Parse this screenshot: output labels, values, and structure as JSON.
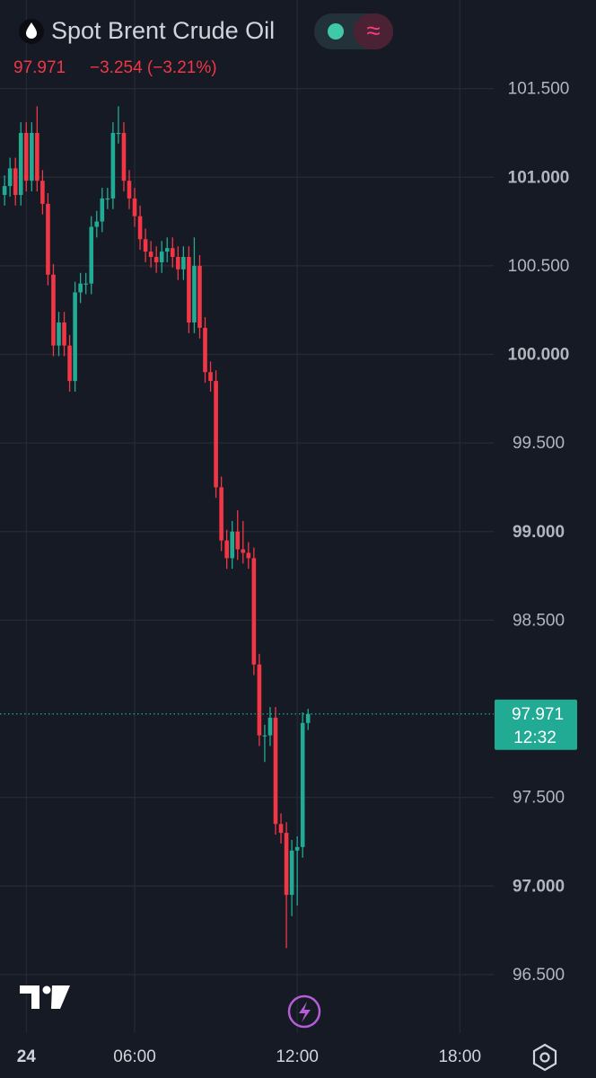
{
  "chart_data": {
    "type": "candlestick",
    "title": "Spot Brent Crude Oil",
    "last_price": 97.971,
    "last_price_label": "97.971",
    "price_change": "−3.254 (−3.21%)",
    "countdown": "12:32",
    "up_color": "#22ab94",
    "down_color": "#f23645",
    "grid": true,
    "x": [
      1.2,
      1.4,
      1.6,
      1.8,
      2.0,
      2.2,
      2.4,
      2.6,
      2.8,
      3.0,
      3.2,
      3.4,
      3.6,
      3.8,
      4.0,
      4.2,
      4.4,
      4.6,
      4.8,
      5.0,
      5.2,
      5.4,
      5.6,
      5.8,
      6.0,
      6.2,
      6.4,
      6.6,
      6.8,
      7.0,
      7.2,
      7.4,
      7.6,
      7.8,
      8.0,
      8.2,
      8.4,
      8.6,
      8.8,
      9.0,
      9.2,
      9.4,
      9.6,
      9.8,
      10.0,
      10.2,
      10.4,
      10.6,
      10.8,
      11.0,
      11.2,
      11.4,
      11.6,
      11.8,
      12.0,
      12.2,
      12.4
    ],
    "open": [
      100.9,
      100.95,
      101.05,
      100.9,
      101.25,
      100.98,
      101.25,
      100.98,
      100.85,
      100.45,
      100.05,
      100.18,
      100.05,
      99.85,
      100.35,
      100.4,
      100.4,
      100.72,
      100.75,
      100.88,
      100.88,
      101.25,
      101.25,
      100.98,
      100.88,
      100.78,
      100.65,
      100.58,
      100.55,
      100.52,
      100.58,
      100.6,
      100.55,
      100.48,
      100.55,
      100.18,
      100.5,
      100.15,
      99.9,
      99.85,
      99.25,
      98.95,
      98.85,
      99.0,
      98.9,
      98.88,
      98.85,
      98.25,
      97.85,
      97.85,
      97.95,
      97.35,
      97.3,
      96.95,
      97.2,
      97.22,
      97.92
    ],
    "high": [
      101.01,
      101.11,
      101.11,
      101.31,
      101.31,
      101.31,
      101.4,
      101.04,
      100.91,
      100.51,
      100.24,
      100.24,
      100.11,
      100.41,
      100.46,
      100.46,
      100.78,
      100.81,
      100.94,
      100.94,
      101.31,
      101.4,
      101.31,
      101.04,
      100.94,
      100.84,
      100.71,
      100.64,
      100.61,
      100.64,
      100.66,
      100.66,
      100.61,
      100.61,
      100.61,
      100.66,
      100.56,
      100.21,
      99.96,
      99.91,
      99.31,
      99.01,
      99.06,
      99.12,
      99.06,
      98.94,
      98.91,
      98.31,
      97.91,
      98.01,
      98.01,
      97.41,
      97.36,
      97.26,
      97.28,
      97.98,
      98.0
    ],
    "low": [
      100.84,
      100.89,
      100.84,
      100.84,
      100.92,
      100.92,
      100.92,
      100.79,
      100.39,
      99.99,
      99.99,
      99.99,
      99.79,
      99.79,
      100.29,
      100.34,
      100.34,
      100.66,
      100.69,
      100.82,
      100.82,
      101.19,
      100.92,
      100.82,
      100.72,
      100.59,
      100.52,
      100.49,
      100.46,
      100.46,
      100.52,
      100.49,
      100.42,
      100.42,
      100.12,
      100.12,
      100.09,
      99.84,
      99.79,
      99.19,
      98.89,
      98.79,
      98.79,
      98.84,
      98.82,
      98.79,
      98.19,
      97.79,
      97.7,
      97.79,
      97.29,
      97.24,
      96.65,
      96.83,
      96.89,
      97.16,
      97.88
    ],
    "close": [
      100.95,
      101.05,
      100.9,
      101.25,
      100.98,
      101.25,
      100.98,
      100.85,
      100.45,
      100.05,
      100.18,
      100.05,
      99.85,
      100.35,
      100.4,
      100.4,
      100.72,
      100.75,
      100.88,
      100.88,
      101.25,
      101.25,
      100.98,
      100.88,
      100.78,
      100.65,
      100.58,
      100.55,
      100.52,
      100.58,
      100.6,
      100.55,
      100.48,
      100.55,
      100.18,
      100.5,
      100.15,
      99.9,
      99.85,
      99.25,
      98.95,
      98.85,
      99.0,
      98.9,
      98.88,
      98.85,
      98.25,
      97.85,
      97.85,
      97.95,
      97.35,
      97.3,
      96.95,
      97.2,
      97.22,
      97.92,
      97.971
    ],
    "xlim": [
      1.03,
      19.25
    ],
    "ylim": [
      96.17,
      102.0
    ],
    "xticks": [
      {
        "value": 2,
        "label": "24"
      },
      {
        "value": 6,
        "label": "06:00"
      },
      {
        "value": 12,
        "label": "12:00"
      },
      {
        "value": 18,
        "label": "18:00"
      }
    ],
    "yticks": [
      {
        "value": 96.5,
        "label": "96.500"
      },
      {
        "value": 97,
        "label": "97.000"
      },
      {
        "value": 97.5,
        "label": "97.500"
      },
      {
        "value": 98.5,
        "label": "98.500"
      },
      {
        "value": 99,
        "label": "99.000"
      },
      {
        "value": 99.5,
        "label": "99.500"
      },
      {
        "value": 100,
        "label": "100.000"
      },
      {
        "value": 100.5,
        "label": "100.500"
      },
      {
        "value": 101,
        "label": "101.000"
      },
      {
        "value": 101.5,
        "label": "101.500"
      }
    ]
  }
}
